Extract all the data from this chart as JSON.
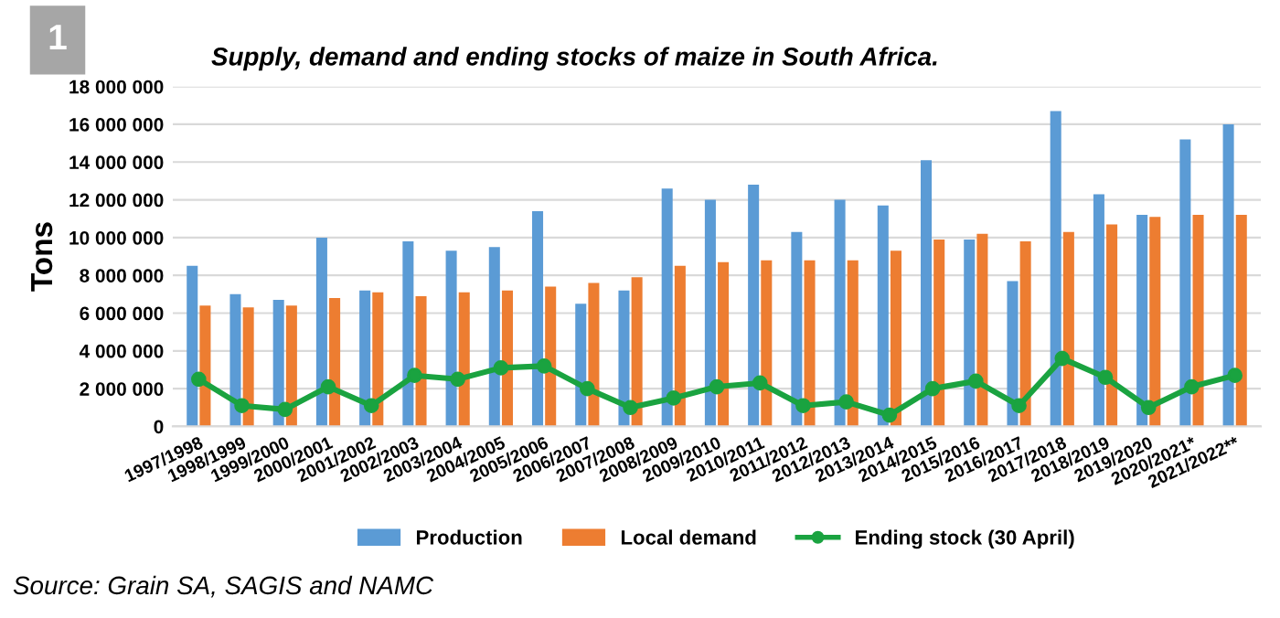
{
  "chart_data": {
    "type": "bar",
    "title": "Supply, demand and ending stocks of maize in South Africa.",
    "ylabel": "Tons",
    "annotations": [
      "1",
      "Source: Grain SA, SAGIS and NAMC"
    ],
    "categories": [
      "1997/1998",
      "1998/1999",
      "1999/2000",
      "2000/2001",
      "2001/2002",
      "2002/2003",
      "2003/2004",
      "2004/2005",
      "2005/2006",
      "2006/2007",
      "2007/2008",
      "2008/2009",
      "2009/2010",
      "2010/2011",
      "2011/2012",
      "2012/2013",
      "2013/2014",
      "2014/2015",
      "2015/2016",
      "2016/2017",
      "2017/2018",
      "2018/2019",
      "2019/2020",
      "2020/2021*",
      "2021/2022**"
    ],
    "series": [
      {
        "name": "Production",
        "color": "#5b9bd5",
        "values": [
          8500000,
          7000000,
          6700000,
          10000000,
          7200000,
          9800000,
          9300000,
          9500000,
          11400000,
          6500000,
          7200000,
          12600000,
          12000000,
          12800000,
          10300000,
          12000000,
          11700000,
          14100000,
          9900000,
          7700000,
          16700000,
          12300000,
          11200000,
          15200000,
          16000000
        ]
      },
      {
        "name": "Local demand",
        "color": "#ed7d31",
        "values": [
          6400000,
          6300000,
          6400000,
          6800000,
          7100000,
          6900000,
          7100000,
          7200000,
          7400000,
          7600000,
          7900000,
          8500000,
          8700000,
          8800000,
          8800000,
          8800000,
          9300000,
          9900000,
          10200000,
          9800000,
          10300000,
          10700000,
          11100000,
          11200000,
          11200000
        ]
      },
      {
        "name": "Ending stock (30 April)",
        "type": "line",
        "color": "#1aa340",
        "marker": "circle",
        "values": [
          2500000,
          1100000,
          900000,
          2100000,
          1100000,
          2700000,
          2500000,
          3100000,
          3200000,
          2000000,
          1000000,
          1500000,
          2100000,
          2300000,
          1100000,
          1300000,
          600000,
          2000000,
          2400000,
          1100000,
          3600000,
          2600000,
          1000000,
          2100000,
          2700000
        ]
      }
    ],
    "ylim": [
      0,
      18000000
    ],
    "yticks": [
      {
        "value": 0,
        "label": "0"
      },
      {
        "value": 2000000,
        "label": "2 000 000"
      },
      {
        "value": 4000000,
        "label": "4 000 000"
      },
      {
        "value": 6000000,
        "label": "6 000 000"
      },
      {
        "value": 8000000,
        "label": "8 000 000"
      },
      {
        "value": 10000000,
        "label": "10 000 000"
      },
      {
        "value": 12000000,
        "label": "12 000 000"
      },
      {
        "value": 14000000,
        "label": "14 000 000"
      },
      {
        "value": 16000000,
        "label": "16 000 000"
      },
      {
        "value": 18000000,
        "label": "18 000 000"
      }
    ],
    "grid": "y",
    "legend": "bottom"
  }
}
